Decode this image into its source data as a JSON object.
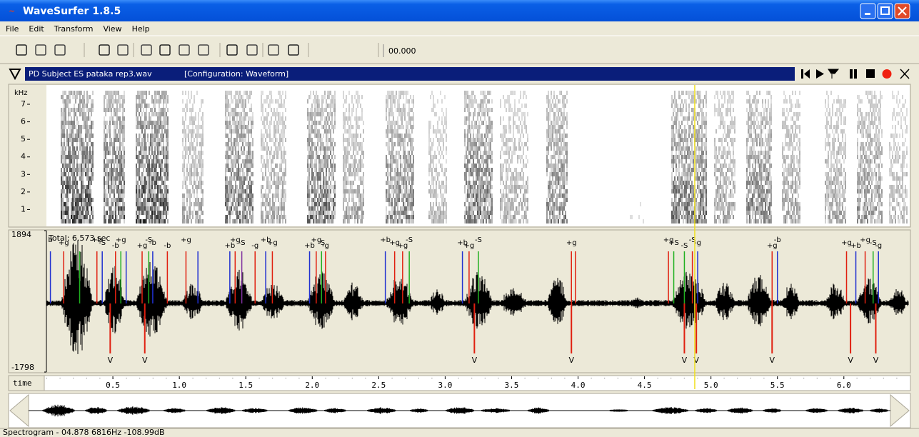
{
  "window": {
    "title": "WaveSurfer 1.8.5"
  },
  "menu": [
    "File",
    "Edit",
    "Transform",
    "View",
    "Help"
  ],
  "toolbar": {
    "time": "00.000"
  },
  "sound": {
    "file": "PD Subject ES pataka rep3.wav",
    "configuration": "[Configuration: Waveform]"
  },
  "chart_data": [
    {
      "type": "spectrogram",
      "y_unit": "kHz",
      "ylim": [
        0,
        8.1
      ],
      "yticks": [
        1,
        2,
        3,
        4,
        5,
        6,
        7
      ],
      "xlim": [
        0,
        6.49
      ],
      "cursor": 4.878
    },
    {
      "type": "waveform",
      "ylim": [
        -1798,
        1894
      ],
      "yticks": [
        1894,
        -1798
      ],
      "xlim": [
        0,
        6.49
      ],
      "annotation": "Total: 6.573 sec",
      "markers": [
        {
          "x": 0.03,
          "color": "#2030d0",
          "label": "b"
        },
        {
          "x": 0.13,
          "color": "#e02010",
          "label": "+g"
        },
        {
          "x": 0.25,
          "color": "#20b020"
        },
        {
          "x": 0.38,
          "color": "#e02010",
          "label": "+b"
        },
        {
          "x": 0.42,
          "color": "#2030d0",
          "label": "-S"
        },
        {
          "x": 0.52,
          "color": "#e02010",
          "label": "-b"
        },
        {
          "x": 0.56,
          "color": "#20b020",
          "label": "+g"
        },
        {
          "x": 0.6,
          "color": "#2030d0"
        },
        {
          "x": 0.72,
          "color": "#e02010",
          "label": "+g"
        },
        {
          "x": 0.77,
          "color": "#20b020",
          "label": "-S"
        },
        {
          "x": 0.8,
          "color": "#2030d0",
          "label": "-b"
        },
        {
          "x": 0.91,
          "color": "#e02010",
          "label": "-b"
        },
        {
          "x": 1.05,
          "color": "#e02010",
          "label": "+g"
        },
        {
          "x": 1.14,
          "color": "#2030d0"
        },
        {
          "x": 1.38,
          "color": "#2030d0",
          "label": "+b"
        },
        {
          "x": 1.42,
          "color": "#e02010",
          "label": "+g"
        },
        {
          "x": 1.47,
          "color": "#8030a0",
          "label": "-S"
        },
        {
          "x": 1.57,
          "color": "#e02010",
          "label": "-g"
        },
        {
          "x": 1.65,
          "color": "#2030d0",
          "label": "+b"
        },
        {
          "x": 1.7,
          "color": "#e02010",
          "label": "+g"
        },
        {
          "x": 1.98,
          "color": "#2030d0",
          "label": "+b"
        },
        {
          "x": 2.03,
          "color": "#e02010",
          "label": "+g"
        },
        {
          "x": 2.07,
          "color": "#20b020",
          "label": "-S"
        },
        {
          "x": 2.1,
          "color": "#e02010",
          "label": "-g"
        },
        {
          "x": 2.55,
          "color": "#2030d0",
          "label": "+b"
        },
        {
          "x": 2.62,
          "color": "#e02010",
          "label": "+g"
        },
        {
          "x": 2.68,
          "color": "#e02010",
          "label": "+g"
        },
        {
          "x": 2.73,
          "color": "#20b020",
          "label": "-S"
        },
        {
          "x": 3.13,
          "color": "#2030d0",
          "label": "+b"
        },
        {
          "x": 3.18,
          "color": "#e02010",
          "label": "+g"
        },
        {
          "x": 3.25,
          "color": "#20b020",
          "label": "-S"
        },
        {
          "x": 3.95,
          "color": "#e02010",
          "label": "+g"
        },
        {
          "x": 3.98,
          "color": "#e02010"
        },
        {
          "x": 4.68,
          "color": "#e02010",
          "label": "+g"
        },
        {
          "x": 4.72,
          "color": "#20b020",
          "label": "+S"
        },
        {
          "x": 4.8,
          "color": "#20b020",
          "label": "-S"
        },
        {
          "x": 4.86,
          "color": "#e02010",
          "label": "-S"
        },
        {
          "x": 4.9,
          "color": "#2030d0",
          "label": "-g"
        },
        {
          "x": 5.46,
          "color": "#e02010",
          "label": "+g"
        },
        {
          "x": 5.5,
          "color": "#2030d0",
          "label": "-b"
        },
        {
          "x": 6.02,
          "color": "#e02010",
          "label": "+g"
        },
        {
          "x": 6.09,
          "color": "#2030d0",
          "label": "+b"
        },
        {
          "x": 6.16,
          "color": "#e02010",
          "label": "+g"
        },
        {
          "x": 6.22,
          "color": "#20b020",
          "label": "-S"
        },
        {
          "x": 6.26,
          "color": "#2030d0",
          "label": "-g"
        }
      ],
      "arrows": [
        {
          "x": 0.48,
          "label": "V"
        },
        {
          "x": 0.74,
          "label": "V"
        },
        {
          "x": 3.22,
          "label": "V"
        },
        {
          "x": 3.95,
          "label": "V"
        },
        {
          "x": 4.8,
          "label": "V"
        },
        {
          "x": 4.89,
          "label": "V"
        },
        {
          "x": 5.46,
          "label": "V"
        },
        {
          "x": 6.05,
          "label": "V"
        },
        {
          "x": 6.24,
          "label": "V"
        }
      ]
    },
    {
      "type": "time-axis",
      "ylabel": "time",
      "xlim": [
        0,
        6.49
      ],
      "xticks": [
        0.5,
        {
          "value": 1,
          "label": "1.0"
        },
        1.5,
        {
          "value": 2,
          "label": "2.0"
        },
        2.5,
        {
          "value": 3,
          "label": "3.0"
        },
        3.5,
        {
          "value": 4,
          "label": "4.0"
        },
        4.5,
        {
          "value": 5,
          "label": "5.0"
        },
        5.5,
        {
          "value": 6,
          "label": "6.0"
        }
      ]
    }
  ],
  "status": "Spectrogram - 04.878 6816Hz -108.99dB"
}
